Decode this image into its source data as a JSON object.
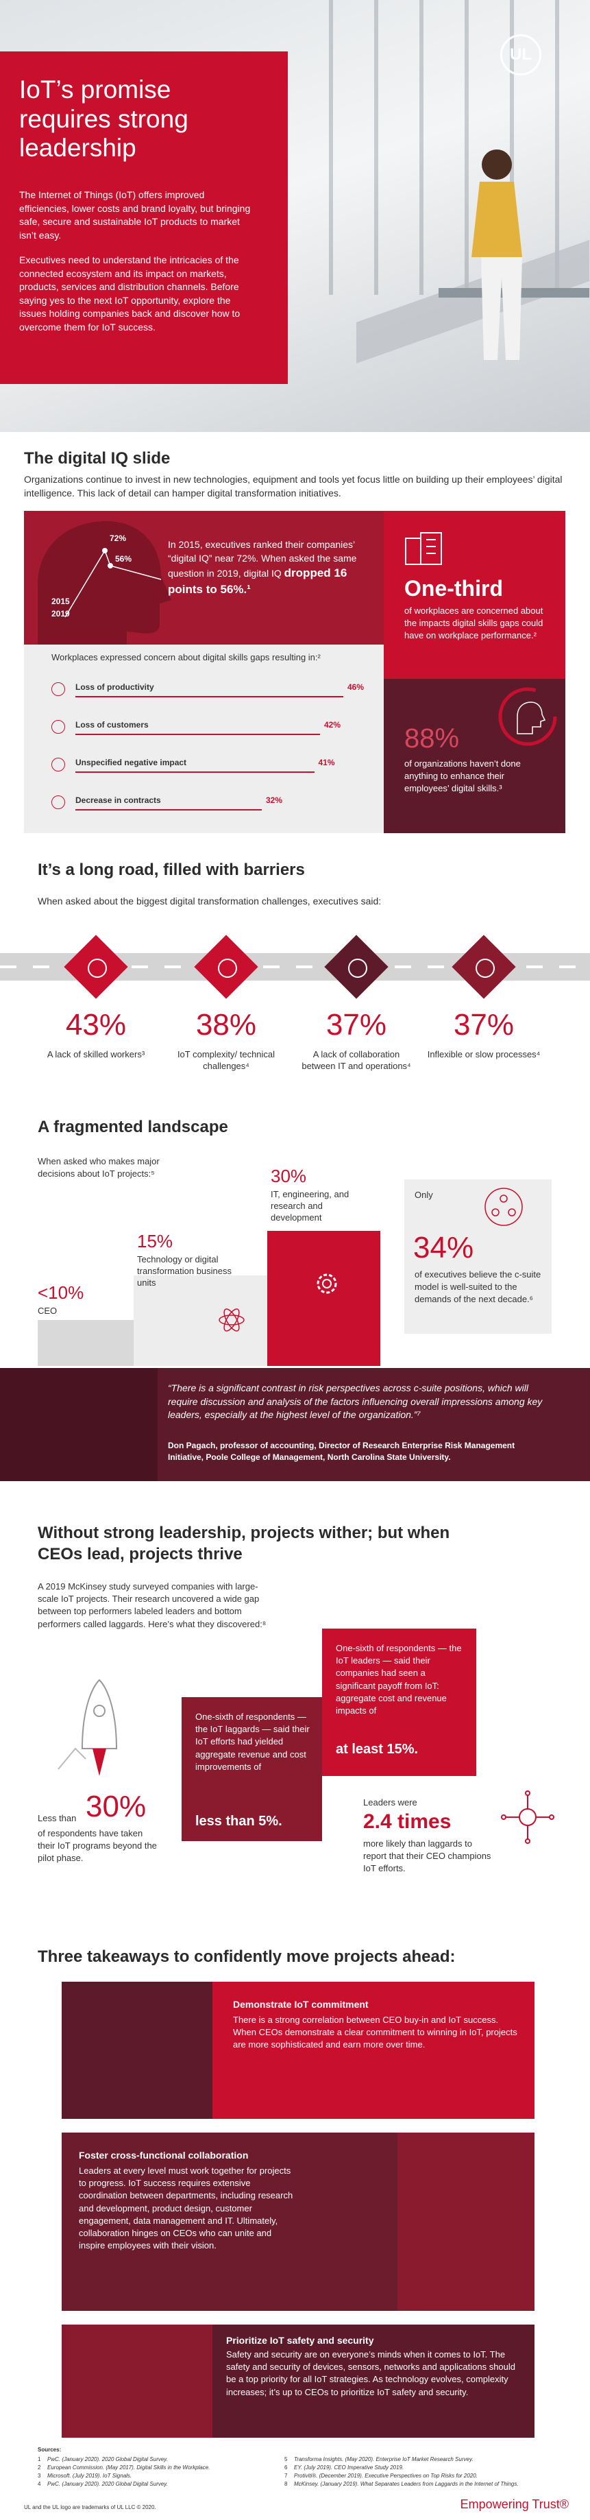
{
  "hero": {
    "logo": "UL",
    "title": "IoT’s promise requires strong leadership",
    "p1": "The Internet of Things (IoT) offers improved efficiencies, lower costs and brand loyalty, but bringing safe, secure and sustainable IoT products to market isn’t easy.",
    "p2": "Executives need to understand the intricacies of the connected ecosystem and its impact on markets, products, services and distribution channels. Before saying yes to the next IoT opportunity, explore the issues holding companies back and discover how to overcome them for IoT success."
  },
  "digital_iq": {
    "heading": "The digital IQ slide",
    "intro": "Organizations continue to invest in new technologies, equipment and tools yet focus little on building up their employees’ digital intelligence. This lack of detail can hamper digital transformation initiatives.",
    "head_labels": {
      "high": "72%",
      "low": "56%",
      "year_start": "2015",
      "year_end": "2019"
    },
    "iq_text": "In 2015, executives ranked their companies’ “digital IQ” near 72%. When asked the same question in 2019, digital IQ",
    "iq_emphasis": "dropped 16 points to 56%.¹",
    "skills_gaps": {
      "heading": "Workplaces expressed concern about digital skills gaps resulting in:²",
      "items": [
        {
          "label": "Loss of productivity",
          "value": 46,
          "value_label": "46%"
        },
        {
          "label": "Loss of customers",
          "value": 42,
          "value_label": "42%"
        },
        {
          "label": "Unspecified negative impact",
          "value": 41,
          "value_label": "41%"
        },
        {
          "label": "Decrease in contracts",
          "value": 32,
          "value_label": "32%"
        }
      ]
    },
    "one_third": {
      "stat": "One-third",
      "text": "of workplaces are concerned about the impacts digital skills gaps could have on workplace performance.²"
    },
    "eighty_eight": {
      "stat": "88%",
      "text": "of organizations haven’t done anything to enhance their employees’ digital skills.³"
    }
  },
  "barriers": {
    "heading": "It’s a long road, filled with barriers",
    "intro": "When asked about the biggest digital transformation challenges, executives said:",
    "items": [
      {
        "stat": "43%",
        "label": "A lack of skilled workers³"
      },
      {
        "stat": "38%",
        "label": "IoT complexity/ technical challenges⁴"
      },
      {
        "stat": "37%",
        "label": "A lack of collaboration between IT and operations⁴"
      },
      {
        "stat": "37%",
        "label": "Inflexible or slow processes⁴"
      }
    ]
  },
  "landscape": {
    "heading": "A fragmented landscape",
    "intro": "When asked who makes major decisions about IoT projects:⁵",
    "steps": [
      {
        "stat": "<10%",
        "label": "CEO"
      },
      {
        "stat": "15%",
        "label": "Technology or digital transformation business units"
      },
      {
        "stat": "30%",
        "label": "IT, engineering, and research and development"
      }
    ],
    "callout": {
      "lead": "Only",
      "stat": "34%",
      "text": "of executives believe the c-suite model is well-suited to the demands of the next decade.⁶"
    },
    "quote": "“There is a significant contrast in risk perspectives across c-suite positions, which will require discussion and analysis of the factors influencing overall impressions among key leaders, especially at the highest level of the organization.”⁷",
    "attribution": "Don Pagach, professor of accounting, Director of Research Enterprise Risk Management Initiative, Poole College of Management, North Carolina State University."
  },
  "leadership": {
    "heading": "Without strong leadership, projects wither; but when CEOs lead, projects thrive",
    "intro": "A 2019 McKinsey study surveyed companies with large-scale IoT projects. Their research uncovered a wide gap between top performers labeled leaders and bottom performers called laggards. Here’s what they discovered:⁸",
    "pilot": {
      "lead": "Less than",
      "stat": "30%",
      "text": "of respondents have taken their IoT programs beyond the pilot phase."
    },
    "laggards": {
      "text": "One-sixth of respondents — the IoT laggards — said their IoT efforts had yielded aggregate revenue and cost improvements of",
      "stat": "less than 5%."
    },
    "leaders": {
      "text": "One-sixth of respondents — the IoT leaders — said their companies had seen a significant payoff from IoT: aggregate cost and revenue impacts of",
      "stat": "at least 15%."
    },
    "ceo": {
      "lead": "Leaders were",
      "stat": "2.4 times",
      "text": "more likely than laggards to report that their CEO champions IoT efforts."
    }
  },
  "takeaways": {
    "heading": "Three takeaways to confidently move projects ahead:",
    "cards": [
      {
        "title": "Demonstrate IoT commitment",
        "body": "There is a strong correlation between CEO buy-in and IoT success. When CEOs demonstrate a clear commitment to winning in IoT, projects are more sophisticated and earn more over time."
      },
      {
        "title": "Foster cross-functional collaboration",
        "body": "Leaders at every level must work together for projects to progress. IoT success requires extensive coordination between departments, including research and development, product design, customer engagement, data management and IT. Ultimately, collaboration hinges on CEOs who can unite and inspire employees with their vision."
      },
      {
        "title": "Prioritize IoT safety and security",
        "body": "Safety and security are on everyone’s minds when it comes to IoT. The safety and security of devices, sensors, networks and applications should be a top priority for all IoT strategies. As technology evolves, complexity increases; it’s up to CEOs to prioritize IoT safety and security."
      }
    ]
  },
  "sources": {
    "heading": "Sources:",
    "items": [
      {
        "num": "1",
        "text": "PwC. (January 2020). 2020 Global Digital Survey."
      },
      {
        "num": "2",
        "text": "European Commission. (May 2017). Digital Skills in the Workplace."
      },
      {
        "num": "3",
        "text": "Microsoft. (July 2019). IoT Signals."
      },
      {
        "num": "4",
        "text": "PwC. (January 2020). 2020 Global Digital Survey."
      },
      {
        "num": "5",
        "text": "Transforma Insights. (May 2020). Enterprise IoT Market Research Survey."
      },
      {
        "num": "6",
        "text": "EY. (July 2019). CEO Imperative Study 2019."
      },
      {
        "num": "7",
        "text": "Protiviti®. (December 2019). Executive Perspectives on Top Risks for 2020."
      },
      {
        "num": "8",
        "text": "McKinsey. (January 2019). What Separates Leaders from Laggards in the Internet of Things."
      }
    ]
  },
  "footer": {
    "trademark": "UL and the UL logo are trademarks of UL LLC © 2020.",
    "tagline": "Empowering Trust®"
  }
}
